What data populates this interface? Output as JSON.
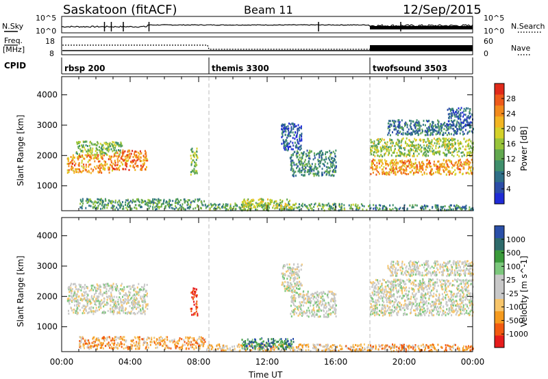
{
  "header": {
    "station": "Saskatoon (fitACF)",
    "beam": "Beam 11",
    "date": "12/Sep/2015"
  },
  "top_panel": {
    "left_label": "N.Sky",
    "left_ticks": [
      "10^5",
      "10^0"
    ],
    "right_label": "N.Search",
    "right_ticks": [
      "10^5",
      "10^0"
    ]
  },
  "freq_panel": {
    "left_label_1": "Freq.",
    "left_label_2": "[MHz]",
    "left_ticks": [
      "18",
      "8"
    ],
    "right_label": "Nave",
    "right_ticks": [
      "60",
      "0"
    ]
  },
  "cpid_panel": {
    "label": "CPID",
    "segments": [
      {
        "name": "rbsp 200",
        "start_hour": 0
      },
      {
        "name": "themis 3300",
        "start_hour": 8.6
      },
      {
        "name": "twofsound 3503",
        "start_hour": 18
      }
    ]
  },
  "colors": {
    "power_scale": [
      "#1f2bd6",
      "#2c4da8",
      "#2f6f88",
      "#3f8f6c",
      "#62a84f",
      "#98c43a",
      "#d4d12a",
      "#f2b522",
      "#f28a1c",
      "#ee5a1a",
      "#e02a1a"
    ],
    "velocity_scale": [
      "#e61c1c",
      "#f25a10",
      "#f59a1e",
      "#f7c56a",
      "#c8c8c8",
      "#c8c8c8",
      "#7cc77c",
      "#3a9a3a",
      "#2e6b6b",
      "#2a4fa8"
    ],
    "ground_scatter": "#bdbdbd"
  },
  "chart_data": [
    {
      "type": "heatmap",
      "panel": "power",
      "xlabel": "",
      "ylabel": "Slant Range [km]",
      "xlim": [
        0,
        24
      ],
      "ylim": [
        180,
        4600
      ],
      "yticks": [
        "1000",
        "2000",
        "3000",
        "4000"
      ],
      "colorbar_label": "Power [dB]",
      "colorbar_ticks": [
        "4",
        "8",
        "12",
        "16",
        "20",
        "24",
        "28"
      ],
      "regions": [
        {
          "x": [
            0.3,
            3.0
          ],
          "y": [
            1450,
            2050
          ],
          "level": 0.75
        },
        {
          "x": [
            3.0,
            5.0
          ],
          "y": [
            1550,
            2200
          ],
          "level": 0.8
        },
        {
          "x": [
            0.8,
            3.5
          ],
          "y": [
            2050,
            2500
          ],
          "level": 0.45
        },
        {
          "x": [
            1.0,
            8.4
          ],
          "y": [
            250,
            600
          ],
          "level": 0.35
        },
        {
          "x": [
            8.4,
            18.0
          ],
          "y": [
            220,
            450
          ],
          "level": 0.4
        },
        {
          "x": [
            10.5,
            13.5
          ],
          "y": [
            280,
            600
          ],
          "level": 0.55
        },
        {
          "x": [
            13.3,
            16.0
          ],
          "y": [
            1350,
            2200
          ],
          "level": 0.3
        },
        {
          "x": [
            12.8,
            14.0
          ],
          "y": [
            2200,
            3100
          ],
          "level": 0.15
        },
        {
          "x": [
            18.0,
            24.0
          ],
          "y": [
            1400,
            1900
          ],
          "level": 0.75
        },
        {
          "x": [
            18.0,
            24.0
          ],
          "y": [
            2000,
            2600
          ],
          "level": 0.5
        },
        {
          "x": [
            19.0,
            24.0
          ],
          "y": [
            2700,
            3200
          ],
          "level": 0.25
        },
        {
          "x": [
            22.5,
            24.0
          ],
          "y": [
            3000,
            3600
          ],
          "level": 0.2
        },
        {
          "x": [
            7.5,
            7.9
          ],
          "y": [
            1400,
            2300
          ],
          "level": 0.45
        },
        {
          "x": [
            18.0,
            24.0
          ],
          "y": [
            220,
            400
          ],
          "level": 0.3
        }
      ]
    },
    {
      "type": "heatmap",
      "panel": "velocity",
      "xlabel": "Time UT",
      "ylabel": "Slant Range [km]",
      "xlim": [
        0,
        24
      ],
      "ylim": [
        180,
        4600
      ],
      "xticks": [
        "00:00",
        "04:00",
        "08:00",
        "12:00",
        "16:00",
        "20:00",
        "00:00"
      ],
      "yticks": [
        "1000",
        "2000",
        "3000",
        "4000"
      ],
      "colorbar_label": "Velocity [m s^-1]",
      "colorbar_ticks": [
        "1000",
        "500",
        "100",
        "25",
        "-25",
        "-100",
        "-500",
        "-1000"
      ],
      "regions": [
        {
          "x": [
            0.3,
            5.0
          ],
          "y": [
            1450,
            2450
          ],
          "level": 0.5
        },
        {
          "x": [
            1.0,
            8.4
          ],
          "y": [
            300,
            700
          ],
          "level": 0.7
        },
        {
          "x": [
            8.4,
            18.0
          ],
          "y": [
            220,
            450
          ],
          "level": 0.65
        },
        {
          "x": [
            10.5,
            13.5
          ],
          "y": [
            280,
            650
          ],
          "level": 0.2
        },
        {
          "x": [
            13.3,
            16.0
          ],
          "y": [
            1350,
            2200
          ],
          "level": 0.5
        },
        {
          "x": [
            12.8,
            14.0
          ],
          "y": [
            2200,
            3100
          ],
          "level": 0.5
        },
        {
          "x": [
            18.0,
            24.0
          ],
          "y": [
            1400,
            2600
          ],
          "level": 0.5
        },
        {
          "x": [
            19.0,
            24.0
          ],
          "y": [
            2700,
            3200
          ],
          "level": 0.5
        },
        {
          "x": [
            7.5,
            7.9
          ],
          "y": [
            1400,
            2300
          ],
          "level": 0.95
        },
        {
          "x": [
            18.0,
            24.0
          ],
          "y": [
            220,
            450
          ],
          "level": 0.7
        }
      ]
    }
  ]
}
